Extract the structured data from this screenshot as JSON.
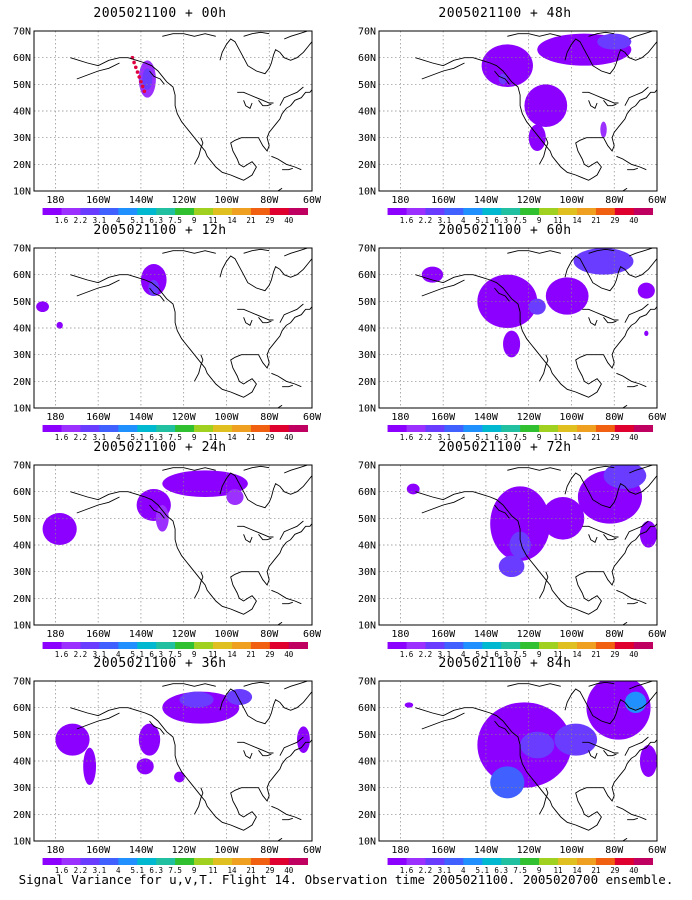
{
  "panels": [
    {
      "title": "2005021100 + 00h"
    },
    {
      "title": "2005021100 + 48h"
    },
    {
      "title": "2005021100 + 12h"
    },
    {
      "title": "2005021100 + 60h"
    },
    {
      "title": "2005021100 + 24h"
    },
    {
      "title": "2005021100 + 72h"
    },
    {
      "title": "2005021100 + 36h"
    },
    {
      "title": "2005021100 + 84h"
    }
  ],
  "axes": {
    "lat_labels": [
      "70N",
      "60N",
      "50N",
      "40N",
      "30N",
      "20N",
      "10N"
    ],
    "lon_labels": [
      "180",
      "160W",
      "140W",
      "120W",
      "100W",
      "80W",
      "60W"
    ]
  },
  "colorbar": {
    "levels": [
      "1.6",
      "2.2",
      "3.1",
      "4",
      "5.1",
      "6.3",
      "7.5",
      "9",
      "11",
      "14",
      "21",
      "29",
      "40"
    ],
    "colors": [
      "#8b00ff",
      "#9b30ff",
      "#6a3cff",
      "#4060ff",
      "#2090ff",
      "#00b8d0",
      "#20c0a0",
      "#30c030",
      "#a0d020",
      "#e0c020",
      "#f0a020",
      "#f06010",
      "#e00030",
      "#c00060"
    ]
  },
  "footer": "Signal Variance for u,v,T. Flight 14. Observation time 2005021100. 2005020700 ensemble."
}
